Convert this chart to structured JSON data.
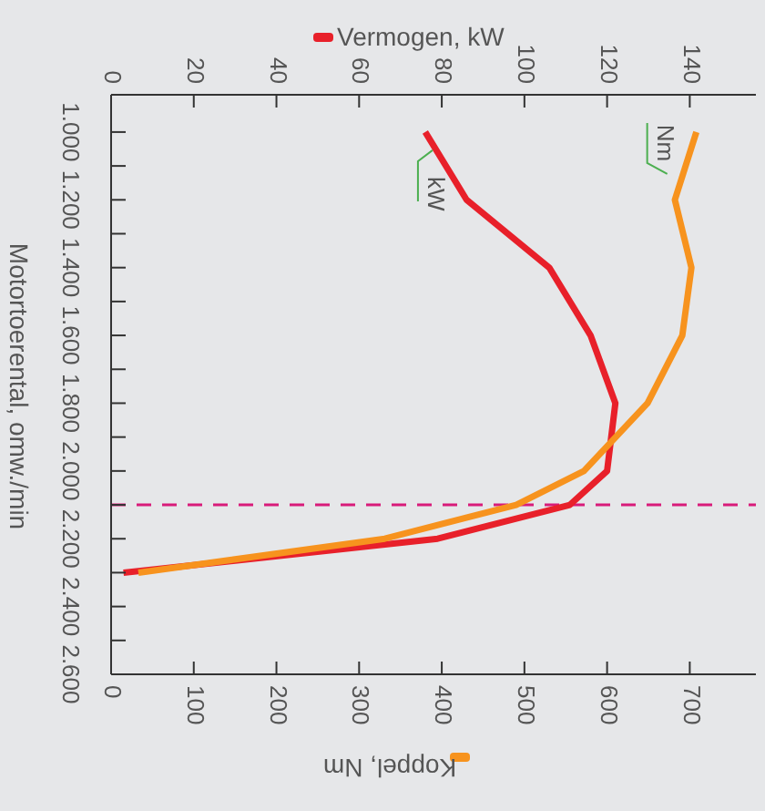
{
  "chart_data": {
    "type": "line",
    "xlabel": "Koppel, Nm",
    "x2label": "Vermogen, kW",
    "ylabel": "Motortoerental, omw./min",
    "series": [
      {
        "name": "kW",
        "color": "#e8202a",
        "axis": "x2",
        "x": [
          76,
          86,
          106,
          116,
          122,
          120,
          111,
          79,
          3
        ],
        "values": [
          1000,
          1200,
          1400,
          1600,
          1800,
          2000,
          2100,
          2200,
          2300
        ]
      },
      {
        "name": "Nm",
        "color": "#f7931e",
        "x": [
          708,
          682,
          702,
          691,
          649,
          572,
          490,
          331,
          33
        ],
        "values": [
          1000,
          1200,
          1400,
          1600,
          1800,
          2000,
          2100,
          2200,
          2300
        ]
      }
    ],
    "ylim": [
      2600,
      890
    ],
    "yticks": [
      {
        "value": 1000,
        "label": "1.000"
      },
      {
        "value": 1100,
        "label": null
      },
      {
        "value": 1200,
        "label": "1.200"
      },
      {
        "value": 1300,
        "label": null
      },
      {
        "value": 1400,
        "label": "1.400"
      },
      {
        "value": 1500,
        "label": null
      },
      {
        "value": 1600,
        "label": "1.600"
      },
      {
        "value": 1700,
        "label": null
      },
      {
        "value": 1800,
        "label": "1.800"
      },
      {
        "value": 1900,
        "label": null
      },
      {
        "value": 2000,
        "label": "2.000"
      },
      {
        "value": 2100,
        "label": null
      },
      {
        "value": 2200,
        "label": "2.200"
      },
      {
        "value": 2300,
        "label": null
      },
      {
        "value": 2400,
        "label": "2.400"
      },
      {
        "value": 2500,
        "label": null
      },
      {
        "value": 2600,
        "label": "2.600"
      }
    ],
    "x2lim": [
      0,
      156
    ],
    "x2ticks": [
      0,
      20,
      40,
      60,
      80,
      100,
      120,
      140
    ],
    "xlim": [
      0,
      780
    ],
    "xticks": [
      0,
      100,
      200,
      300,
      400,
      500,
      600,
      700
    ],
    "ref_lines": [
      {
        "axis": "y",
        "value": 2100,
        "color": "#d81b7a",
        "line_style": "dashed"
      }
    ],
    "line_style": "solid"
  }
}
